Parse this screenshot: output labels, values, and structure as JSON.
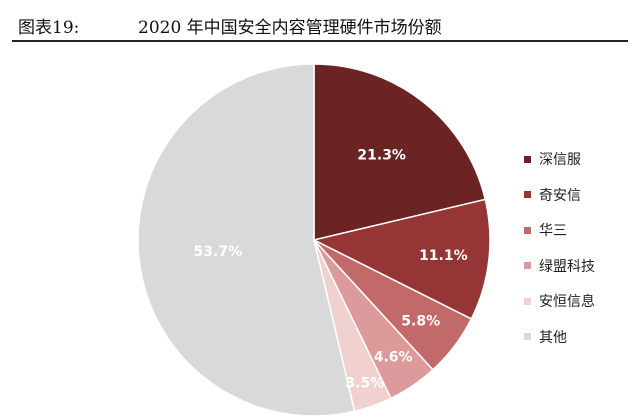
{
  "header": {
    "figure_label": "图表19:",
    "title": "2020 年中国安全内容管理硬件市场份额"
  },
  "chart_data": {
    "type": "pie",
    "title": "2020 年中国安全内容管理硬件市场份额",
    "labels": [
      "深信服",
      "奇安信",
      "华三",
      "绿盟科技",
      "安恒信息",
      "其他"
    ],
    "values": [
      21.3,
      11.1,
      5.8,
      4.6,
      3.5,
      53.7
    ],
    "value_labels": [
      "21.3%",
      "11.1%",
      "5.8%",
      "4.6%",
      "3.5%",
      "53.7%"
    ],
    "colors": [
      "#6b2323",
      "#953535",
      "#c26a6a",
      "#dc9a9a",
      "#f1d0d0",
      "#d9d9d9"
    ],
    "start": "12 o'clock",
    "direction": "clockwise",
    "legend_position": "right"
  }
}
